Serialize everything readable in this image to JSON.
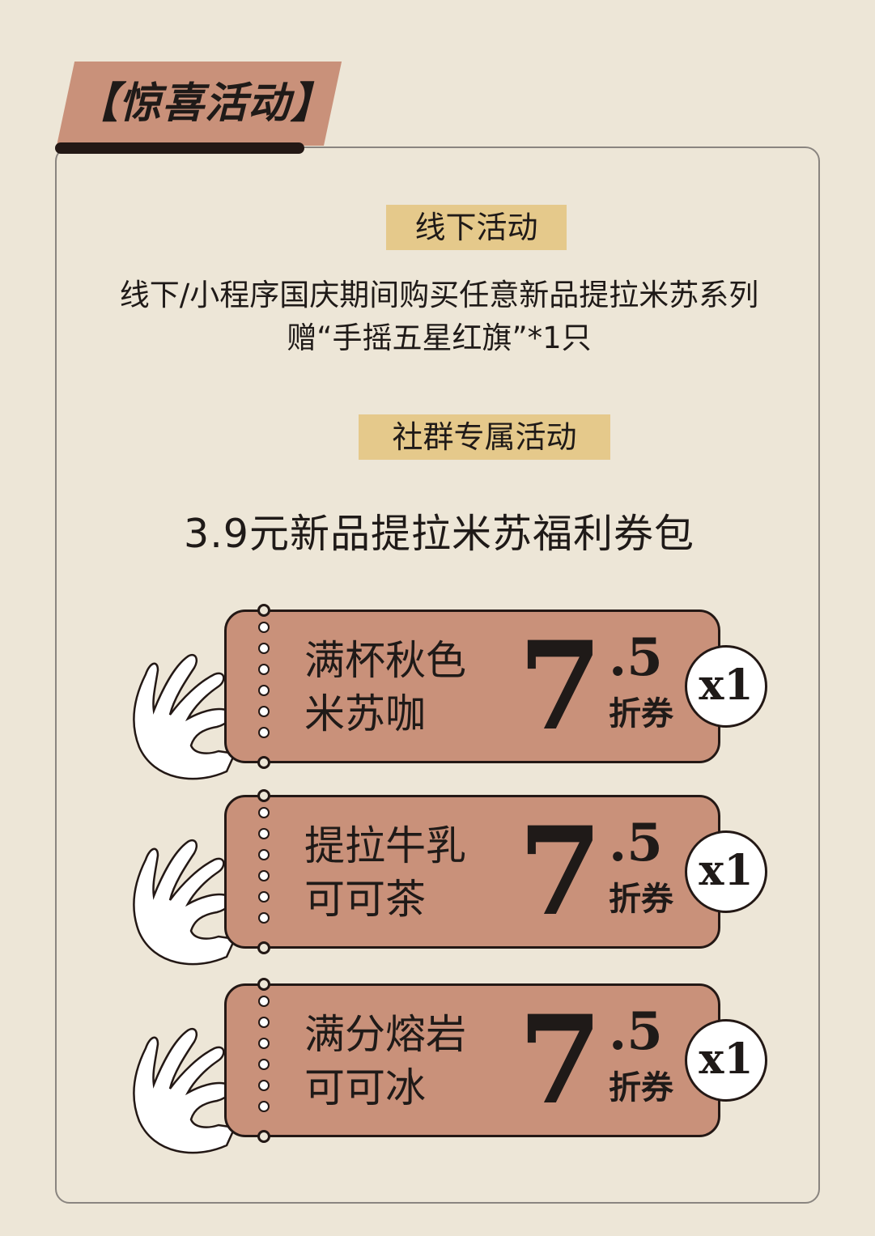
{
  "header": {
    "title": "【惊喜活动】"
  },
  "offline": {
    "label": "线下活动",
    "line1": "线下/小程序国庆期间购买任意新品提拉米苏系列",
    "line2": "赠“手摇五星红旗”*1只"
  },
  "community": {
    "label": "社群专属活动",
    "subtitle": "3.9元新品提拉米苏福利券包"
  },
  "colors": {
    "background": "#ede6d7",
    "ticket": "#c9917a",
    "label": "#e5c98b",
    "ink": "#231815"
  },
  "coupons": [
    {
      "line1": "满杯秋色",
      "line2": "米苏咖",
      "big": "7",
      ".5": ".5",
      "decimal": ".5",
      "unit": "折券",
      "qty": "x1"
    },
    {
      "line1": "提拉牛乳",
      "line2": "可可茶",
      "big": "7",
      "decimal": ".5",
      "unit": "折券",
      "qty": "x1"
    },
    {
      "line1": "满分熔岩",
      "line2": "可可冰",
      "big": "7",
      "decimal": ".5",
      "unit": "折券",
      "qty": "x1"
    }
  ]
}
